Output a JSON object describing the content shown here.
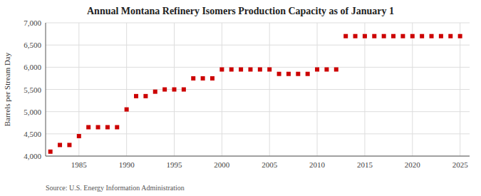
{
  "chart_data": {
    "type": "scatter",
    "title": "Annual Montana Refinery Isomers Production Capacity as of January 1",
    "ylabel": "Barrels per Stream Day",
    "annotations": [
      "Source: U.S. Energy Information Administration"
    ],
    "color": "#cc0000",
    "marker": "square",
    "grid": true,
    "xlim": [
      1981.5,
      2026
    ],
    "xticks": [
      1985,
      1990,
      1995,
      2000,
      2005,
      2010,
      2015,
      2020,
      2025
    ],
    "ylim": [
      4000,
      7000
    ],
    "yticks": [
      {
        "value": 4000,
        "label": "4,000"
      },
      {
        "value": 4500,
        "label": "4,500"
      },
      {
        "value": 5000,
        "label": "5,000"
      },
      {
        "value": 5500,
        "label": "5,500"
      },
      {
        "value": 6000,
        "label": "6,000"
      },
      {
        "value": 6500,
        "label": "6,500"
      },
      {
        "value": 7000,
        "label": "7,000"
      }
    ],
    "x": [
      1982,
      1983,
      1984,
      1985,
      1986,
      1987,
      1988,
      1989,
      1990,
      1991,
      1992,
      1993,
      1994,
      1995,
      1996,
      1997,
      1998,
      1999,
      2000,
      2001,
      2002,
      2003,
      2004,
      2005,
      2006,
      2007,
      2008,
      2009,
      2010,
      2011,
      2012,
      2013,
      2014,
      2015,
      2016,
      2017,
      2018,
      2019,
      2020,
      2021,
      2022,
      2023,
      2024,
      2025
    ],
    "values": [
      4100,
      4250,
      4250,
      4450,
      4650,
      4650,
      4650,
      4650,
      5050,
      5350,
      5350,
      5450,
      5500,
      5500,
      5500,
      5750,
      5750,
      5750,
      5950,
      5950,
      5950,
      5950,
      5950,
      5950,
      5850,
      5850,
      5850,
      5850,
      5950,
      5950,
      5950,
      6700,
      6700,
      6700,
      6700,
      6700,
      6700,
      6700,
      6700,
      6700,
      6700,
      6700,
      6700,
      6700
    ]
  }
}
